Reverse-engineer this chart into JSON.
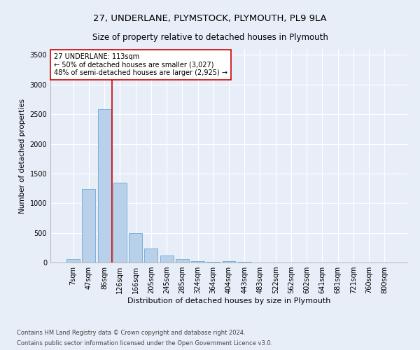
{
  "title1": "27, UNDERLANE, PLYMSTOCK, PLYMOUTH, PL9 9LA",
  "title2": "Size of property relative to detached houses in Plymouth",
  "xlabel": "Distribution of detached houses by size in Plymouth",
  "ylabel": "Number of detached properties",
  "bar_labels": [
    "7sqm",
    "47sqm",
    "86sqm",
    "126sqm",
    "166sqm",
    "205sqm",
    "245sqm",
    "285sqm",
    "324sqm",
    "364sqm",
    "404sqm",
    "443sqm",
    "483sqm",
    "522sqm",
    "562sqm",
    "602sqm",
    "641sqm",
    "681sqm",
    "721sqm",
    "760sqm",
    "800sqm"
  ],
  "bar_values": [
    55,
    1240,
    2580,
    1340,
    500,
    235,
    115,
    55,
    25,
    15,
    20,
    15,
    0,
    0,
    0,
    0,
    0,
    0,
    0,
    0,
    0
  ],
  "bar_color": "#b8d0ea",
  "bar_edge_color": "#6fa8d6",
  "vline_x_index": 2.5,
  "vline_color": "#cc0000",
  "annotation_text": "27 UNDERLANE: 113sqm\n← 50% of detached houses are smaller (3,027)\n48% of semi-detached houses are larger (2,925) →",
  "annotation_box_color": "#ffffff",
  "annotation_box_edge": "#cc0000",
  "ylim": [
    0,
    3600
  ],
  "yticks": [
    0,
    500,
    1000,
    1500,
    2000,
    2500,
    3000,
    3500
  ],
  "footer1": "Contains HM Land Registry data © Crown copyright and database right 2024.",
  "footer2": "Contains public sector information licensed under the Open Government Licence v3.0.",
  "bg_color": "#e8eef8",
  "plot_bg_color": "#e8eef8",
  "title1_fontsize": 9.5,
  "title2_fontsize": 8.5,
  "xlabel_fontsize": 8,
  "ylabel_fontsize": 7.5,
  "tick_fontsize": 7,
  "annotation_fontsize": 7,
  "footer_fontsize": 6
}
